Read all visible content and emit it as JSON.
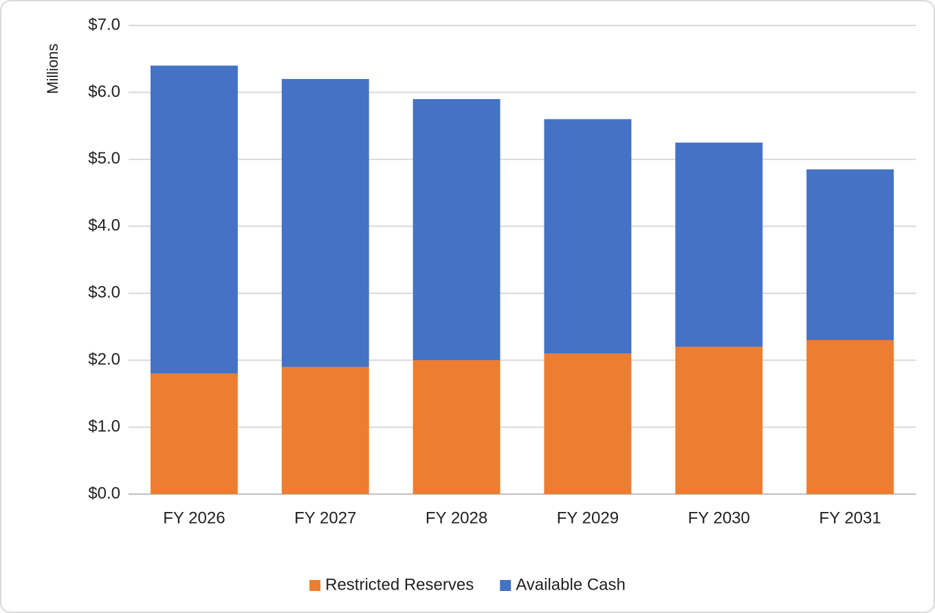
{
  "chart_data": {
    "type": "stacked_bar",
    "y_axis_label": "Millions",
    "categories": [
      "FY 2026",
      "FY 2027",
      "FY 2028",
      "FY 2029",
      "FY 2030",
      "FY 2031"
    ],
    "series": [
      {
        "name": "Restricted Reserves",
        "color": "#ed7d31",
        "values": [
          1.8,
          1.9,
          2.0,
          2.1,
          2.2,
          2.3
        ]
      },
      {
        "name": "Available Cash",
        "color": "#4472c4",
        "values": [
          4.6,
          4.3,
          3.9,
          3.5,
          3.05,
          2.55
        ]
      }
    ],
    "ylim": [
      0,
      7
    ],
    "yticks": [
      {
        "value": 0,
        "label": "$0.0"
      },
      {
        "value": 1,
        "label": "$1.0"
      },
      {
        "value": 2,
        "label": "$2.0"
      },
      {
        "value": 3,
        "label": "$3.0"
      },
      {
        "value": 4,
        "label": "$4.0"
      },
      {
        "value": 5,
        "label": "$5.0"
      },
      {
        "value": 6,
        "label": "$6.0"
      },
      {
        "value": 7,
        "label": "$7.0"
      }
    ],
    "grid": true,
    "legend": "bottom"
  }
}
